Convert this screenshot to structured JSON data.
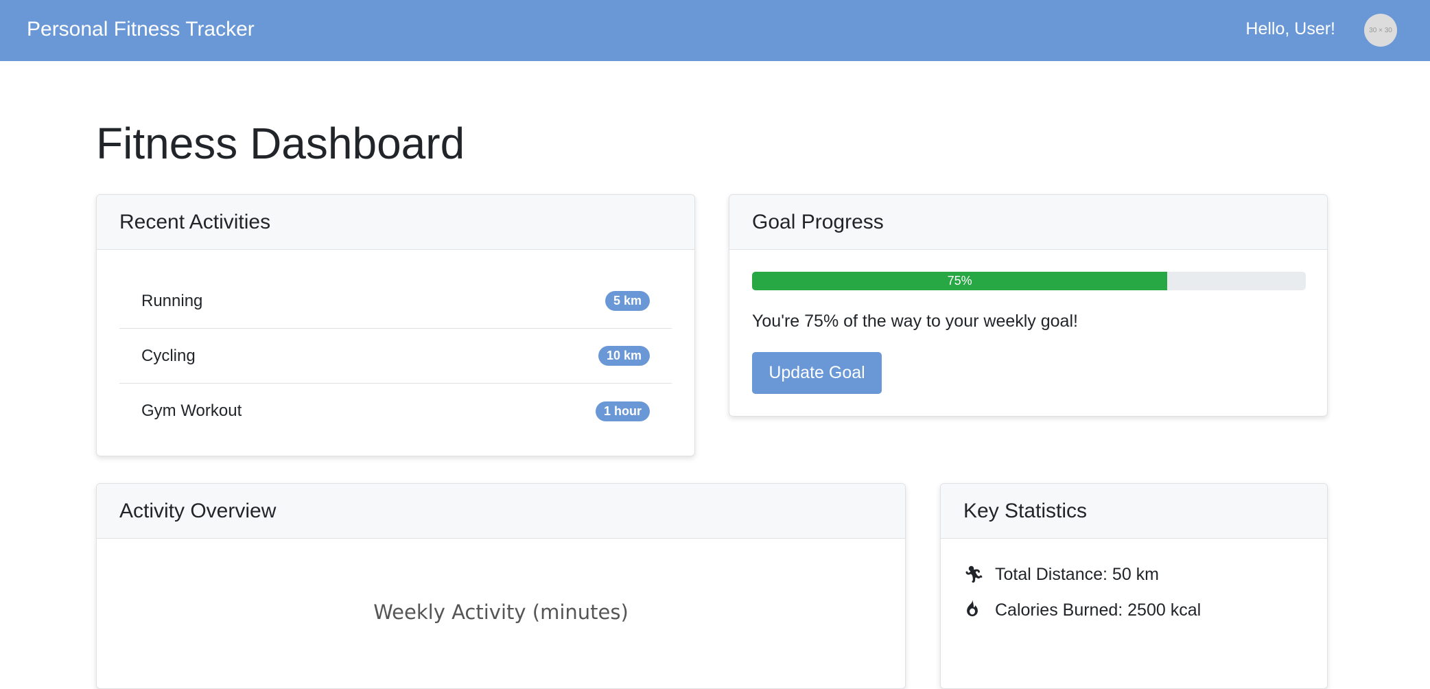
{
  "navbar": {
    "brand": "Personal Fitness Tracker",
    "greeting": "Hello, User!",
    "avatar_text": "30 × 30"
  },
  "page_title": "Fitness Dashboard",
  "recent": {
    "title": "Recent Activities",
    "items": [
      {
        "name": "Running",
        "value": "5 km"
      },
      {
        "name": "Cycling",
        "value": "10 km"
      },
      {
        "name": "Gym Workout",
        "value": "1 hour"
      }
    ]
  },
  "goal": {
    "title": "Goal Progress",
    "percent": 75,
    "percent_label": "75%",
    "text": "You're 75% of the way to your weekly goal!",
    "button": "Update Goal",
    "bar_color": "#28a745"
  },
  "overview": {
    "title": "Activity Overview"
  },
  "chart_data": {
    "title": "Weekly Activity (minutes)"
  },
  "stats": {
    "title": "Key Statistics",
    "items": [
      {
        "icon": "running-icon",
        "label": "Total Distance: 50 km"
      },
      {
        "icon": "fire-icon",
        "label": "Calories Burned: 2500 kcal"
      }
    ]
  },
  "colors": {
    "accent": "#6a98d6",
    "success": "#28a745"
  }
}
